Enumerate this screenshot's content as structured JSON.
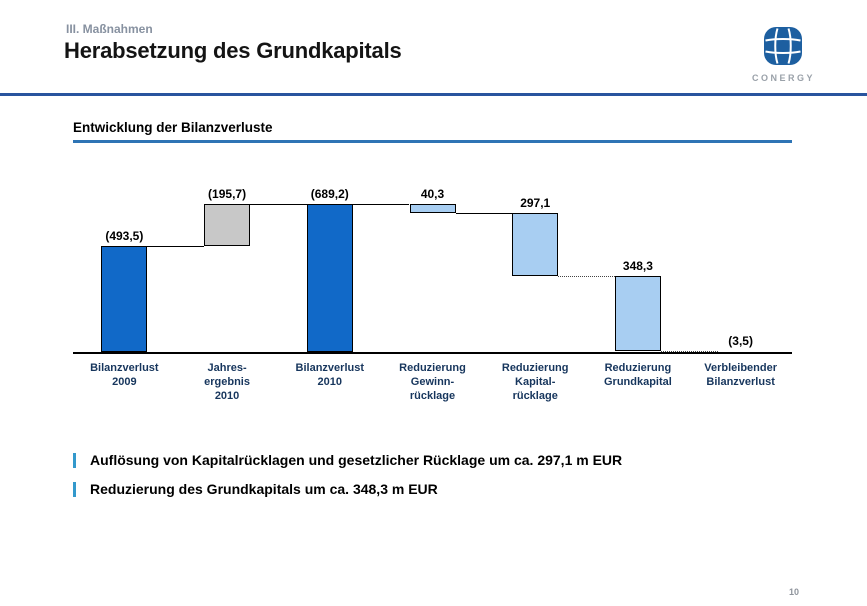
{
  "header": {
    "eyebrow": "III. Maßnahmen",
    "title": "Herabsetzung des Grundkapitals",
    "brand": "CONERGY"
  },
  "section": {
    "title": "Entwicklung der Bilanzverluste"
  },
  "chart_data": {
    "type": "bar",
    "subtype": "waterfall",
    "title": "Entwicklung der Bilanzverluste",
    "unit": "m EUR",
    "ylim": [
      0,
      689.2
    ],
    "grid": false,
    "legend": false,
    "categories": [
      "Bilanzverlust\n2009",
      "Jahres-\nergebnis\n2010",
      "Bilanzverlust\n2010",
      "Reduzierung\nGewinn-\nrücklage",
      "Reduzierung\nKapital-\nrücklage",
      "Reduzierung\nGrundkapital",
      "Verbleibender\nBilanzverlust"
    ],
    "values": [
      493.5,
      195.7,
      689.2,
      40.3,
      297.1,
      348.3,
      3.5
    ],
    "value_labels": [
      "(493,5)",
      "(195,7)",
      "(689,2)",
      "40,3",
      "297,1",
      "348,3",
      "(3,5)"
    ],
    "bars": [
      {
        "category": "Bilanzverlust 2009",
        "label": "(493,5)",
        "lo": 0,
        "hi": 493.5,
        "color": "dark_blue"
      },
      {
        "category": "Jahresergebnis 2010",
        "label": "(195,7)",
        "lo": 493.5,
        "hi": 689.2,
        "color": "gray"
      },
      {
        "category": "Bilanzverlust 2010",
        "label": "(689,2)",
        "lo": 0,
        "hi": 689.2,
        "color": "dark_blue"
      },
      {
        "category": "Reduzierung Gewinnrücklage",
        "label": "40,3",
        "lo": 648.9,
        "hi": 689.2,
        "color": "light_blue"
      },
      {
        "category": "Reduzierung Kapitalrücklage",
        "label": "297,1",
        "lo": 351.8,
        "hi": 648.9,
        "color": "light_blue"
      },
      {
        "category": "Reduzierung Grundkapital",
        "label": "348,3",
        "lo": 3.5,
        "hi": 351.8,
        "color": "light_blue"
      },
      {
        "category": "Verbleibender Bilanzverlust",
        "label": "(3,5)",
        "lo": 0,
        "hi": 3.5,
        "color": "light_blue"
      }
    ],
    "connectors": [
      {
        "from": 0,
        "to": 1,
        "level": 493.5,
        "style": "solid"
      },
      {
        "from": 1,
        "to": 2,
        "level": 689.2,
        "style": "solid"
      },
      {
        "from": 2,
        "to": 3,
        "level": 689.2,
        "style": "solid"
      },
      {
        "from": 3,
        "to": 4,
        "level": 648.9,
        "style": "solid"
      },
      {
        "from": 4,
        "to": 5,
        "level": 351.8,
        "style": "dotted"
      },
      {
        "from": 5,
        "to": 6,
        "level": 3.5,
        "style": "dotted"
      }
    ],
    "colors": {
      "dark_blue": "#1169c8",
      "gray": "#c8c8c8",
      "light_blue": "#a8cef2"
    }
  },
  "bullets": [
    {
      "text": "Auflösung von Kapitalrücklagen und gesetzlicher Rücklage um ca. 297,1 m EUR"
    },
    {
      "text": "Reduzierung des Grundkapitals um ca. 348,3 m EUR"
    }
  ],
  "footer": {
    "page_number": "10"
  }
}
